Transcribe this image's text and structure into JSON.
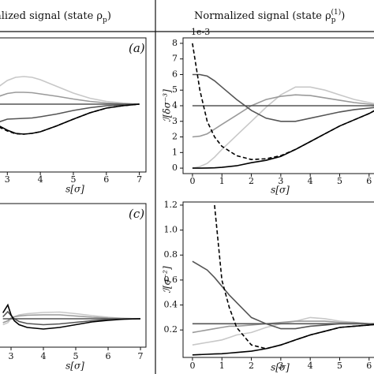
{
  "header": {
    "left": {
      "text": "alized signal (state ρ",
      "sub": "p",
      "close": ")"
    },
    "right": {
      "text": "Normalized signal (state ρ",
      "sub": "p",
      "sup": "(1)",
      "close": ")"
    }
  },
  "chart_data": [
    {
      "type": "line",
      "label": "(a)",
      "xlabel": "s[σ]",
      "x": [
        2.75,
        3,
        3.25,
        3.5,
        3.75,
        4,
        4.5,
        5,
        5.5,
        6,
        6.5,
        7
      ],
      "xlim": [
        2.73,
        7.2
      ],
      "ylim": [
        -1.72,
        1.68
      ],
      "xticks": [
        3,
        4,
        5,
        6,
        7
      ],
      "series": [
        {
          "name": "light",
          "color": "#c8c8c8",
          "dash": false,
          "values": [
            0.45,
            0.6,
            0.68,
            0.7,
            0.68,
            0.62,
            0.45,
            0.28,
            0.15,
            0.07,
            0.03,
            0
          ]
        },
        {
          "name": "mid",
          "color": "#9a9a9a",
          "dash": false,
          "values": [
            0.2,
            0.27,
            0.3,
            0.3,
            0.29,
            0.26,
            0.2,
            0.13,
            0.07,
            0.03,
            0.01,
            0
          ]
        },
        {
          "name": "flat",
          "color": "#555555",
          "dash": false,
          "values": [
            0,
            0,
            0,
            0,
            0,
            0,
            0,
            0,
            0,
            0,
            0,
            0
          ]
        },
        {
          "name": "dark",
          "color": "#555555",
          "dash": false,
          "values": [
            -0.45,
            -0.38,
            -0.37,
            -0.36,
            -0.35,
            -0.32,
            -0.25,
            -0.16,
            -0.09,
            -0.04,
            -0.02,
            0
          ]
        },
        {
          "name": "black",
          "color": "#000000",
          "dash": false,
          "values": [
            -0.55,
            -0.66,
            -0.74,
            -0.76,
            -0.74,
            -0.7,
            -0.55,
            -0.38,
            -0.22,
            -0.1,
            -0.04,
            0
          ]
        },
        {
          "name": "dashed",
          "color": "#000000",
          "dash": true,
          "values": [
            -0.58,
            -0.68,
            -0.75,
            -0.76,
            -0.74,
            -0.7,
            -0.55,
            -0.38,
            -0.22,
            -0.1,
            -0.04,
            0
          ]
        }
      ]
    },
    {
      "type": "line",
      "xlabel": "s[σ]",
      "ylabel": "ℐ[δσ⁻³]",
      "offset_text": "1e-3",
      "x": [
        0,
        0.25,
        0.5,
        0.75,
        1,
        1.5,
        2,
        2.5,
        3,
        3.5,
        4,
        4.5,
        5,
        5.5,
        6,
        6.25
      ],
      "xlim": [
        -0.32,
        6.22
      ],
      "ylim": [
        -0.35,
        8.35
      ],
      "xticks": [
        0,
        1,
        2,
        3,
        4,
        5,
        6
      ],
      "yticks": [
        0,
        1,
        2,
        3,
        4,
        5,
        6,
        7,
        8
      ],
      "series": [
        {
          "name": "light",
          "color": "#c8c8c8",
          "dash": false,
          "values": [
            0,
            0.1,
            0.3,
            0.7,
            1.2,
            2.1,
            3.0,
            3.9,
            4.7,
            5.2,
            5.2,
            5.0,
            4.7,
            4.4,
            4.2,
            4.1
          ]
        },
        {
          "name": "mid",
          "color": "#9a9a9a",
          "dash": false,
          "values": [
            2,
            2.05,
            2.2,
            2.5,
            2.8,
            3.4,
            4.0,
            4.4,
            4.6,
            4.7,
            4.65,
            4.5,
            4.35,
            4.2,
            4.1,
            4.05
          ]
        },
        {
          "name": "flat",
          "color": "#555555",
          "dash": false,
          "values": [
            4,
            4,
            4,
            4,
            4,
            4,
            4,
            4,
            4,
            4,
            4,
            4,
            4,
            4,
            4,
            4
          ]
        },
        {
          "name": "dark",
          "color": "#555555",
          "dash": false,
          "values": [
            6,
            6.0,
            5.9,
            5.6,
            5.2,
            4.4,
            3.7,
            3.2,
            3.0,
            3.0,
            3.2,
            3.4,
            3.6,
            3.75,
            3.85,
            3.9
          ]
        },
        {
          "name": "black",
          "color": "#000000",
          "dash": false,
          "values": [
            0,
            0,
            0.01,
            0.02,
            0.05,
            0.15,
            0.35,
            0.5,
            0.75,
            1.2,
            1.7,
            2.2,
            2.7,
            3.1,
            3.5,
            3.75
          ]
        },
        {
          "name": "dashed",
          "color": "#000000",
          "dash": true,
          "values": [
            8,
            5.0,
            3.0,
            2.0,
            1.4,
            0.8,
            0.55,
            0.6,
            0.8,
            1.2,
            1.7,
            2.2,
            2.7,
            3.1,
            3.5,
            3.75
          ]
        }
      ]
    },
    {
      "type": "line",
      "label": "(c)",
      "xlabel": "s[σ]",
      "x": [
        2.75,
        2.9,
        3,
        3.1,
        3.25,
        3.5,
        4,
        4.5,
        5,
        5.5,
        6,
        6.5,
        7
      ],
      "xlim": [
        2.61,
        7.17
      ],
      "ylim": [
        -0.72,
        2.92
      ],
      "xticks": [
        3,
        4,
        5,
        6,
        7
      ],
      "series": [
        {
          "name": "light",
          "color": "#c8c8c8",
          "dash": false,
          "values": [
            -0.15,
            -0.1,
            0,
            0.05,
            0.1,
            0.13,
            0.16,
            0.17,
            0.13,
            0.08,
            0.04,
            0.01,
            0
          ]
        },
        {
          "name": "mid",
          "color": "#9a9a9a",
          "dash": false,
          "values": [
            -0.1,
            -0.05,
            0.02,
            0.05,
            0.07,
            0.09,
            0.1,
            0.1,
            0.07,
            0.04,
            0.02,
            0.01,
            0
          ]
        },
        {
          "name": "flat",
          "color": "#555555",
          "dash": false,
          "values": [
            0,
            0,
            0,
            0,
            0,
            0,
            0,
            0,
            0,
            0,
            0,
            0,
            0
          ]
        },
        {
          "name": "dark",
          "color": "#555555",
          "dash": false,
          "values": [
            0.05,
            0.18,
            0.08,
            0,
            -0.07,
            -0.12,
            -0.15,
            -0.13,
            -0.09,
            -0.05,
            -0.02,
            -0.01,
            0
          ]
        },
        {
          "name": "black",
          "color": "#000000",
          "dash": false,
          "values": [
            0.15,
            0.35,
            0.1,
            -0.05,
            -0.15,
            -0.22,
            -0.26,
            -0.22,
            -0.15,
            -0.08,
            -0.04,
            -0.01,
            0
          ]
        }
      ]
    },
    {
      "type": "line",
      "xlabel": "s[σ]",
      "ylabel": "ℐ[σ⁻²]",
      "x": [
        0,
        0.5,
        0.75,
        1,
        1.25,
        1.5,
        2,
        2.5,
        3,
        3.5,
        4,
        4.5,
        5,
        5.5,
        6,
        6.25
      ],
      "xlim": [
        -0.32,
        6.22
      ],
      "ylim": [
        -0.02,
        1.225
      ],
      "xticks": [
        0,
        1,
        2,
        3,
        4,
        5,
        6
      ],
      "yticks": [
        0.2,
        0.4,
        0.6,
        0.8,
        {
          "value": 1,
          "label": "1.0"
        },
        1.2
      ],
      "series": [
        {
          "name": "light",
          "color": "#c8c8c8",
          "dash": false,
          "values": [
            0.08,
            0.1,
            0.11,
            0.12,
            0.14,
            0.16,
            0.18,
            0.22,
            0.25,
            0.27,
            0.3,
            0.29,
            0.27,
            0.26,
            0.25,
            0.25
          ]
        },
        {
          "name": "mid",
          "color": "#9a9a9a",
          "dash": false,
          "values": [
            0.18,
            0.2,
            0.21,
            0.22,
            0.23,
            0.23,
            0.24,
            0.25,
            0.26,
            0.27,
            0.27,
            0.27,
            0.26,
            0.26,
            0.25,
            0.25
          ]
        },
        {
          "name": "flat",
          "color": "#555555",
          "dash": false,
          "values": [
            0.25,
            0.25,
            0.25,
            0.25,
            0.25,
            0.25,
            0.25,
            0.25,
            0.25,
            0.25,
            0.25,
            0.25,
            0.25,
            0.25,
            0.25,
            0.25
          ]
        },
        {
          "name": "dark",
          "color": "#555555",
          "dash": false,
          "values": [
            0.75,
            0.68,
            0.62,
            0.55,
            0.48,
            0.42,
            0.3,
            0.25,
            0.21,
            0.21,
            0.23,
            0.24,
            0.25,
            0.25,
            0.25,
            0.25
          ]
        },
        {
          "name": "black",
          "color": "#000000",
          "dash": false,
          "values": [
            0,
            0.005,
            0.008,
            0.01,
            0.015,
            0.02,
            0.03,
            0.05,
            0.08,
            0.12,
            0.16,
            0.19,
            0.22,
            0.23,
            0.24,
            0.245
          ]
        },
        {
          "name": "dashed",
          "color": "#000000",
          "dash": true,
          "values": [
            null,
            null,
            1.2,
            0.6,
            0.38,
            0.22,
            0.08,
            0.05,
            0.08,
            0.12,
            0.16,
            0.19,
            0.22,
            0.23,
            0.24,
            0.245
          ]
        }
      ]
    }
  ]
}
